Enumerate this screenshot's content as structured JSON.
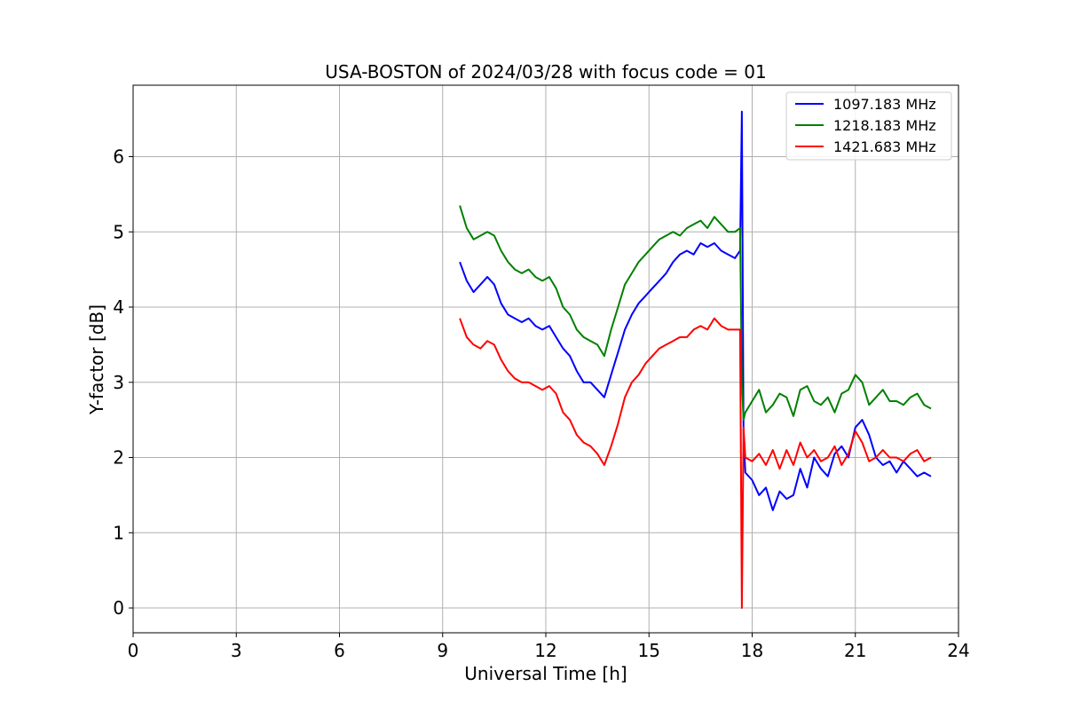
{
  "chart_data": {
    "type": "line",
    "title": "USA-BOSTON of 2024/03/28 with focus code = 01",
    "xlabel": "Universal Time [h]",
    "ylabel": "Y-factor [dB]",
    "xlim": [
      0,
      24
    ],
    "ylim": [
      -0.33,
      6.95
    ],
    "xticks": [
      0,
      3,
      6,
      9,
      12,
      15,
      18,
      21,
      24
    ],
    "yticks": [
      0,
      1,
      2,
      3,
      4,
      5,
      6
    ],
    "grid": true,
    "legend_position": "top-right",
    "series": [
      {
        "name": "1097.183 MHz",
        "color": "#0000ff",
        "x": [
          9.5,
          9.7,
          9.9,
          10.1,
          10.3,
          10.5,
          10.7,
          10.9,
          11.1,
          11.3,
          11.5,
          11.7,
          11.9,
          12.1,
          12.3,
          12.5,
          12.7,
          12.9,
          13.1,
          13.3,
          13.5,
          13.7,
          13.9,
          14.1,
          14.3,
          14.5,
          14.7,
          14.9,
          15.1,
          15.3,
          15.5,
          15.7,
          15.9,
          16.1,
          16.3,
          16.5,
          16.7,
          16.9,
          17.1,
          17.3,
          17.5,
          17.65,
          17.7,
          17.75,
          17.8,
          18.0,
          18.2,
          18.4,
          18.6,
          18.8,
          19.0,
          19.2,
          19.4,
          19.6,
          19.8,
          20.0,
          20.2,
          20.4,
          20.6,
          20.8,
          21.0,
          21.2,
          21.4,
          21.6,
          21.8,
          22.0,
          22.2,
          22.4,
          22.6,
          22.8,
          23.0,
          23.2
        ],
        "y": [
          4.6,
          4.35,
          4.2,
          4.3,
          4.4,
          4.3,
          4.05,
          3.9,
          3.85,
          3.8,
          3.85,
          3.75,
          3.7,
          3.75,
          3.6,
          3.45,
          3.35,
          3.15,
          3.0,
          3.0,
          2.9,
          2.8,
          3.1,
          3.4,
          3.7,
          3.9,
          4.05,
          4.15,
          4.25,
          4.35,
          4.45,
          4.6,
          4.7,
          4.75,
          4.7,
          4.85,
          4.8,
          4.85,
          4.75,
          4.7,
          4.65,
          4.75,
          6.6,
          2.3,
          1.8,
          1.7,
          1.5,
          1.6,
          1.3,
          1.55,
          1.45,
          1.5,
          1.85,
          1.6,
          2.0,
          1.85,
          1.75,
          2.05,
          2.15,
          2.0,
          2.4,
          2.5,
          2.3,
          2.0,
          1.9,
          1.95,
          1.8,
          1.95,
          1.85,
          1.75,
          1.8,
          1.75
        ]
      },
      {
        "name": "1218.183 MHz",
        "color": "#008000",
        "x": [
          9.5,
          9.7,
          9.9,
          10.1,
          10.3,
          10.5,
          10.7,
          10.9,
          11.1,
          11.3,
          11.5,
          11.7,
          11.9,
          12.1,
          12.3,
          12.5,
          12.7,
          12.9,
          13.1,
          13.3,
          13.5,
          13.7,
          13.9,
          14.1,
          14.3,
          14.5,
          14.7,
          14.9,
          15.1,
          15.3,
          15.5,
          15.7,
          15.9,
          16.1,
          16.3,
          16.5,
          16.7,
          16.9,
          17.1,
          17.3,
          17.5,
          17.65,
          17.7,
          17.75,
          17.8,
          18.0,
          18.2,
          18.4,
          18.6,
          18.8,
          19.0,
          19.2,
          19.4,
          19.6,
          19.8,
          20.0,
          20.2,
          20.4,
          20.6,
          20.8,
          21.0,
          21.2,
          21.4,
          21.6,
          21.8,
          22.0,
          22.2,
          22.4,
          22.6,
          22.8,
          23.0,
          23.2
        ],
        "y": [
          5.35,
          5.05,
          4.9,
          4.95,
          5.0,
          4.95,
          4.75,
          4.6,
          4.5,
          4.45,
          4.5,
          4.4,
          4.35,
          4.4,
          4.25,
          4.0,
          3.9,
          3.7,
          3.6,
          3.55,
          3.5,
          3.35,
          3.7,
          4.0,
          4.3,
          4.45,
          4.6,
          4.7,
          4.8,
          4.9,
          4.95,
          5.0,
          4.95,
          5.05,
          5.1,
          5.15,
          5.05,
          5.2,
          5.1,
          5.0,
          5.0,
          5.05,
          3.0,
          2.5,
          2.6,
          2.75,
          2.9,
          2.6,
          2.7,
          2.85,
          2.8,
          2.55,
          2.9,
          2.95,
          2.75,
          2.7,
          2.8,
          2.6,
          2.85,
          2.9,
          3.1,
          3.0,
          2.7,
          2.8,
          2.9,
          2.75,
          2.75,
          2.7,
          2.8,
          2.85,
          2.7,
          2.65
        ]
      },
      {
        "name": "1421.683 MHz",
        "color": "#ff0000",
        "x": [
          9.5,
          9.7,
          9.9,
          10.1,
          10.3,
          10.5,
          10.7,
          10.9,
          11.1,
          11.3,
          11.5,
          11.7,
          11.9,
          12.1,
          12.3,
          12.5,
          12.7,
          12.9,
          13.1,
          13.3,
          13.5,
          13.7,
          13.9,
          14.1,
          14.3,
          14.5,
          14.7,
          14.9,
          15.1,
          15.3,
          15.5,
          15.7,
          15.9,
          16.1,
          16.3,
          16.5,
          16.7,
          16.9,
          17.1,
          17.3,
          17.5,
          17.65,
          17.7,
          17.75,
          17.8,
          18.0,
          18.2,
          18.4,
          18.6,
          18.8,
          19.0,
          19.2,
          19.4,
          19.6,
          19.8,
          20.0,
          20.2,
          20.4,
          20.6,
          20.8,
          21.0,
          21.2,
          21.4,
          21.6,
          21.8,
          22.0,
          22.2,
          22.4,
          22.6,
          22.8,
          23.0,
          23.2
        ],
        "y": [
          3.85,
          3.6,
          3.5,
          3.45,
          3.55,
          3.5,
          3.3,
          3.15,
          3.05,
          3.0,
          3.0,
          2.95,
          2.9,
          2.95,
          2.85,
          2.6,
          2.5,
          2.3,
          2.2,
          2.15,
          2.05,
          1.9,
          2.15,
          2.45,
          2.8,
          3.0,
          3.1,
          3.25,
          3.35,
          3.45,
          3.5,
          3.55,
          3.6,
          3.6,
          3.7,
          3.75,
          3.7,
          3.85,
          3.75,
          3.7,
          3.7,
          3.7,
          0.0,
          2.4,
          2.0,
          1.95,
          2.05,
          1.9,
          2.1,
          1.85,
          2.1,
          1.9,
          2.2,
          2.0,
          2.1,
          1.95,
          2.0,
          2.15,
          1.9,
          2.05,
          2.35,
          2.2,
          1.95,
          2.0,
          2.1,
          2.0,
          2.0,
          1.95,
          2.05,
          2.1,
          1.95,
          2.0
        ]
      }
    ]
  }
}
